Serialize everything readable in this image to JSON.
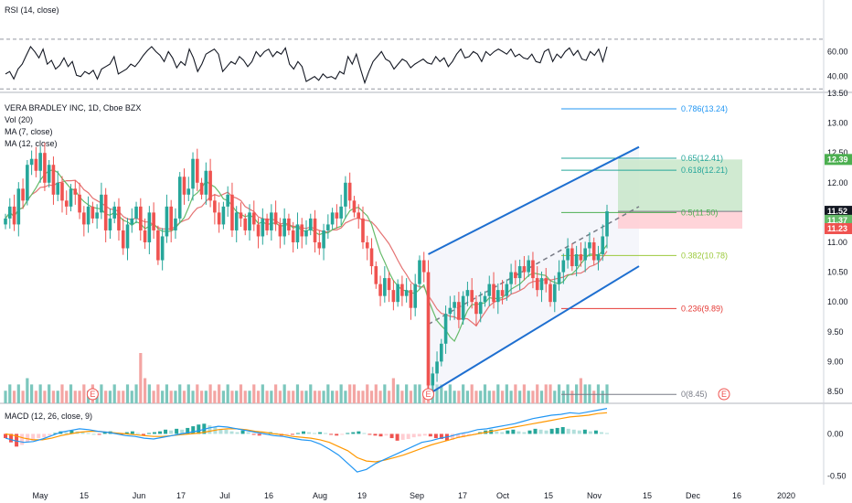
{
  "chart_data": [
    {
      "type": "line",
      "panel": "rsi",
      "legend": "RSI (14, close)",
      "ylim": [
        28,
        100
      ],
      "ticks": [
        "40.00",
        "60.00"
      ],
      "band": [
        30,
        70
      ],
      "color": "#131722",
      "values": [
        42,
        44,
        38,
        46,
        50,
        57,
        64,
        60,
        55,
        62,
        50,
        53,
        46,
        49,
        55,
        48,
        52,
        41,
        40,
        44,
        42,
        45,
        38,
        46,
        48,
        50,
        56,
        42,
        44,
        46,
        50,
        48,
        52,
        57,
        61,
        64,
        60,
        57,
        52,
        60,
        55,
        47,
        52,
        49,
        62,
        55,
        44,
        50,
        58,
        60,
        62,
        58,
        44,
        48,
        52,
        50,
        56,
        53,
        48,
        52,
        60,
        56,
        60,
        62,
        56,
        60,
        58,
        63,
        50,
        46,
        52,
        48,
        36,
        38,
        40,
        37,
        42,
        39,
        40,
        38,
        44,
        42,
        56,
        50,
        58,
        46,
        35,
        44,
        52,
        56,
        60,
        54,
        52,
        46,
        50,
        54,
        52,
        47,
        50,
        52,
        54,
        51,
        50,
        56,
        52,
        55,
        48,
        52,
        58,
        62,
        55,
        56,
        60,
        58,
        52,
        60,
        57,
        60,
        62,
        60,
        58,
        62,
        56,
        58,
        55,
        54,
        58,
        52,
        51,
        60,
        62,
        52,
        58,
        55,
        60,
        63,
        57,
        61,
        54,
        53,
        60,
        57,
        62,
        52,
        64
      ]
    },
    {
      "type": "candlestick",
      "panel": "price",
      "legend": [
        "VERA BRADLEY INC, 1D, Cboe BZX",
        "Vol (20)",
        "MA (7, close)",
        "MA (12, close)"
      ],
      "ylim": [
        8.3,
        13.5
      ],
      "ticks": [
        "8.50",
        "9.00",
        "9.50",
        "10.00",
        "10.50",
        "11.00",
        "11.50",
        "12.00",
        "12.50",
        "13.00",
        "13.50"
      ],
      "closes": [
        11.4,
        11.6,
        11.3,
        11.9,
        11.7,
        12.3,
        12.4,
        12.2,
        12.5,
        12.0,
        12.3,
        11.8,
        12.0,
        11.7,
        11.6,
        11.9,
        11.8,
        11.5,
        11.3,
        11.6,
        11.4,
        11.5,
        11.8,
        11.2,
        11.4,
        11.6,
        11.2,
        10.9,
        11.3,
        11.4,
        11.6,
        11.2,
        11.0,
        11.5,
        11.2,
        10.7,
        11.1,
        11.6,
        11.2,
        11.4,
        12.1,
        11.8,
        11.9,
        12.4,
        12.0,
        11.8,
        12.2,
        11.7,
        11.5,
        11.3,
        11.6,
        11.8,
        11.2,
        11.5,
        11.4,
        11.2,
        11.5,
        11.3,
        11.1,
        11.4,
        11.2,
        11.5,
        11.3,
        11.1,
        11.4,
        11.2,
        11.0,
        11.3,
        11.1,
        11.2,
        11.4,
        11.0,
        10.9,
        11.2,
        11.3,
        11.5,
        11.4,
        11.6,
        12.0,
        11.7,
        11.5,
        11.4,
        11.0,
        10.9,
        10.6,
        10.3,
        10.1,
        10.4,
        10.2,
        10.0,
        10.3,
        10.1,
        10.2,
        9.9,
        10.3,
        10.7,
        10.5,
        8.6,
        8.8,
        9.0,
        9.3,
        9.8,
        9.9,
        10.0,
        9.7,
        10.1,
        10.2,
        10.0,
        9.8,
        10.0,
        10.1,
        10.3,
        10.0,
        10.2,
        10.1,
        10.3,
        10.5,
        10.4,
        10.6,
        10.5,
        10.7,
        10.4,
        10.2,
        10.4,
        10.3,
        10.0,
        10.3,
        10.5,
        10.7,
        10.9,
        10.6,
        10.8,
        10.7,
        10.9,
        11.0,
        10.7,
        10.8,
        11.1,
        11.52
      ],
      "last_values": {
        "ma12": "11.37",
        "ma7": "11.23",
        "close": "11.52"
      },
      "volume_values": [
        2,
        3,
        2,
        3,
        2,
        4,
        3,
        2,
        3,
        2,
        3,
        2,
        2,
        3,
        2,
        3,
        2,
        2,
        3,
        2,
        3,
        2,
        3,
        2,
        2,
        3,
        2,
        2,
        3,
        2,
        3,
        8,
        4,
        3,
        2,
        3,
        2,
        3,
        2,
        2,
        3,
        2,
        3,
        2,
        3,
        2,
        2,
        3,
        2,
        3,
        2,
        3,
        2,
        2,
        3,
        2,
        2,
        3,
        2,
        3,
        2,
        2,
        3,
        2,
        3,
        2,
        2,
        3,
        2,
        2,
        3,
        2,
        2,
        2,
        3,
        2,
        2,
        3,
        2,
        3,
        3,
        2,
        2,
        3,
        2,
        3,
        2,
        3,
        2,
        4,
        3,
        2,
        3,
        2,
        3,
        3,
        2,
        7,
        4,
        3,
        3,
        2,
        3,
        2,
        2,
        3,
        2,
        3,
        2,
        2,
        3,
        2,
        2,
        3,
        2,
        3,
        2,
        3,
        2,
        3,
        2,
        2,
        3,
        2,
        3,
        3,
        2,
        3,
        2,
        3,
        2,
        3,
        4,
        3,
        3,
        2,
        3,
        2,
        3,
        2,
        3
      ],
      "fib_levels": [
        {
          "label": "0.786(13.24)",
          "value": 13.24,
          "color": "#2196f3"
        },
        {
          "label": "0.65(12.41)",
          "value": 12.41,
          "color": "#26a69a"
        },
        {
          "label": "0.618(12.21)",
          "value": 12.21,
          "color": "#26a69a"
        },
        {
          "label": "0.5(11.50)",
          "value": 11.5,
          "color": "#4caf50"
        },
        {
          "label": "0.382(10.78)",
          "value": 10.78,
          "color": "#9bc93b"
        },
        {
          "label": "0.236(9.89)",
          "value": 9.89,
          "color": "#e53935"
        },
        {
          "label": "0(8.45)",
          "value": 8.45,
          "color": "#787b86"
        }
      ],
      "channel": {
        "color": "#1e6fd0"
      },
      "position": {
        "target": 12.39,
        "entry": 11.52,
        "stop": 11.23,
        "target_label": "12.39",
        "entry_label": "11.52",
        "stop_label": "11.23"
      },
      "earnings_marker": "E"
    },
    {
      "type": "histogram+line",
      "panel": "macd",
      "legend": "MACD (12, 26, close, 9)",
      "ylim": [
        -0.6,
        0.35
      ],
      "ticks": [
        "0.00",
        "-0.50"
      ],
      "histogram": [
        -0.05,
        -0.1,
        -0.15,
        -0.13,
        -0.1,
        -0.08,
        -0.05,
        -0.04,
        -0.02,
        0.01,
        0.03,
        0.02,
        0.04,
        0.03,
        0.02,
        0.01,
        0.0,
        -0.01,
        0.02,
        0.03,
        0.01,
        -0.01,
        0.02,
        0.03,
        0.01,
        -0.02,
        0.01,
        0.02,
        0.03,
        0.05,
        0.04,
        0.06,
        0.05,
        0.07,
        0.09,
        0.11,
        0.12,
        0.1,
        0.08,
        0.06,
        0.05,
        0.03,
        0.02,
        0.04,
        0.02,
        -0.01,
        -0.02,
        -0.01,
        0.02,
        0.01,
        -0.02,
        -0.01,
        -0.01,
        0.01,
        0.03,
        0.02,
        0.01,
        0.02,
        0.01,
        -0.01,
        -0.02,
        -0.01,
        0.01,
        0.02,
        0.03,
        0.01,
        -0.01,
        -0.02,
        -0.03,
        -0.02,
        -0.05,
        -0.08,
        -0.07,
        -0.06,
        -0.04,
        -0.03,
        -0.02,
        -0.03,
        -0.05,
        -0.06,
        -0.08,
        -0.07,
        -0.05,
        -0.04,
        -0.02,
        -0.01,
        0.02,
        0.04,
        0.05,
        0.03,
        0.02,
        0.04,
        0.05,
        0.03,
        0.02,
        0.04,
        0.06,
        0.05,
        0.04,
        0.06,
        0.07,
        0.08,
        0.06,
        0.05,
        0.04,
        0.05,
        0.03,
        0.04,
        0.02,
        0.01
      ],
      "macd_line": [
        -0.05,
        -0.08,
        -0.1,
        -0.09,
        -0.06,
        -0.02,
        0.02,
        0.04,
        0.06,
        0.05,
        0.03,
        0.02,
        0.0,
        -0.02,
        -0.03,
        -0.05,
        -0.06,
        -0.04,
        -0.02,
        0.0,
        0.02,
        0.04,
        0.07,
        0.09,
        0.08,
        0.06,
        0.04,
        0.02,
        0.0,
        -0.02,
        -0.03,
        -0.05,
        -0.07,
        -0.08,
        -0.12,
        -0.18,
        -0.25,
        -0.35,
        -0.45,
        -0.42,
        -0.35,
        -0.3,
        -0.25,
        -0.2,
        -0.15,
        -0.1,
        -0.08,
        -0.05,
        -0.03,
        0.0,
        0.02,
        0.05,
        0.06,
        0.08,
        0.1,
        0.12,
        0.15,
        0.18,
        0.2,
        0.22,
        0.23,
        0.25,
        0.24,
        0.26,
        0.28,
        0.3
      ],
      "signal_line": [
        0.0,
        -0.02,
        -0.05,
        -0.07,
        -0.07,
        -0.05,
        -0.02,
        0.0,
        0.02,
        0.03,
        0.03,
        0.02,
        0.01,
        0.0,
        -0.01,
        -0.02,
        -0.03,
        -0.03,
        -0.02,
        -0.01,
        0.0,
        0.01,
        0.03,
        0.05,
        0.06,
        0.06,
        0.05,
        0.03,
        0.02,
        0.0,
        -0.01,
        -0.03,
        -0.04,
        -0.05,
        -0.07,
        -0.1,
        -0.15,
        -0.2,
        -0.28,
        -0.32,
        -0.33,
        -0.31,
        -0.28,
        -0.25,
        -0.21,
        -0.17,
        -0.13,
        -0.1,
        -0.07,
        -0.04,
        -0.02,
        0.0,
        0.02,
        0.04,
        0.06,
        0.08,
        0.1,
        0.12,
        0.14,
        0.16,
        0.18,
        0.2,
        0.21,
        0.22,
        0.24,
        0.25
      ]
    }
  ],
  "x_axis": {
    "labels": [
      "May",
      "15",
      "Jun",
      "17",
      "Jul",
      "16",
      "Aug",
      "19",
      "Sep",
      "17",
      "Oct",
      "15",
      "Nov",
      "15",
      "Dec",
      "16",
      "2020"
    ]
  }
}
